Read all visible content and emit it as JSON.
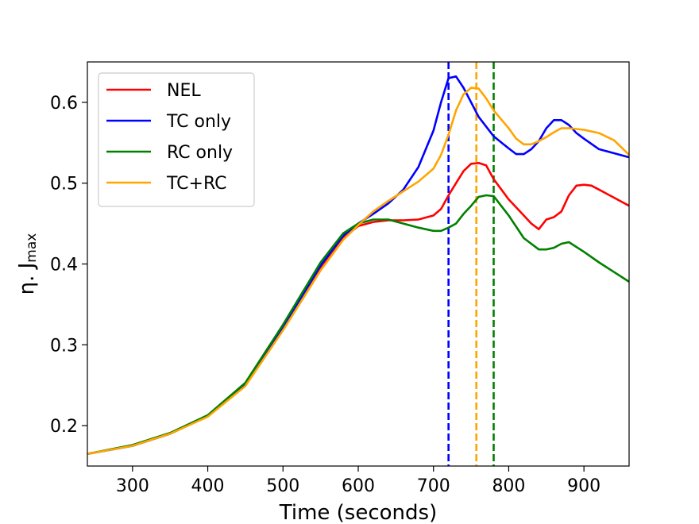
{
  "chart_data": {
    "type": "line",
    "title": "",
    "xlabel": "Time (seconds)",
    "ylabel_main": "η. J",
    "ylabel_sub": "max",
    "xlim": [
      240,
      960
    ],
    "ylim": [
      0.15,
      0.65
    ],
    "xticks": [
      300,
      400,
      500,
      600,
      700,
      800,
      900
    ],
    "yticks": [
      0.2,
      0.3,
      0.4,
      0.5,
      0.6
    ],
    "legend_position": "top-left",
    "series": [
      {
        "name": "NEL",
        "color": "#ff0000",
        "points": [
          [
            240,
            0.165
          ],
          [
            300,
            0.175
          ],
          [
            350,
            0.19
          ],
          [
            400,
            0.212
          ],
          [
            450,
            0.25
          ],
          [
            500,
            0.32
          ],
          [
            550,
            0.395
          ],
          [
            580,
            0.432
          ],
          [
            600,
            0.447
          ],
          [
            620,
            0.452
          ],
          [
            640,
            0.454
          ],
          [
            660,
            0.454
          ],
          [
            680,
            0.455
          ],
          [
            700,
            0.46
          ],
          [
            710,
            0.468
          ],
          [
            720,
            0.485
          ],
          [
            730,
            0.5
          ],
          [
            740,
            0.515
          ],
          [
            750,
            0.524
          ],
          [
            760,
            0.525
          ],
          [
            770,
            0.522
          ],
          [
            780,
            0.505
          ],
          [
            800,
            0.48
          ],
          [
            820,
            0.46
          ],
          [
            830,
            0.45
          ],
          [
            840,
            0.443
          ],
          [
            850,
            0.455
          ],
          [
            860,
            0.458
          ],
          [
            870,
            0.465
          ],
          [
            880,
            0.485
          ],
          [
            890,
            0.497
          ],
          [
            900,
            0.498
          ],
          [
            910,
            0.497
          ],
          [
            920,
            0.492
          ],
          [
            940,
            0.482
          ],
          [
            960,
            0.472
          ]
        ]
      },
      {
        "name": "TC only",
        "color": "#0000ff",
        "points": [
          [
            240,
            0.165
          ],
          [
            300,
            0.175
          ],
          [
            350,
            0.19
          ],
          [
            400,
            0.212
          ],
          [
            450,
            0.251
          ],
          [
            500,
            0.322
          ],
          [
            550,
            0.398
          ],
          [
            580,
            0.435
          ],
          [
            600,
            0.45
          ],
          [
            620,
            0.462
          ],
          [
            640,
            0.475
          ],
          [
            660,
            0.492
          ],
          [
            680,
            0.52
          ],
          [
            700,
            0.565
          ],
          [
            710,
            0.6
          ],
          [
            720,
            0.63
          ],
          [
            730,
            0.632
          ],
          [
            740,
            0.618
          ],
          [
            760,
            0.582
          ],
          [
            780,
            0.558
          ],
          [
            800,
            0.543
          ],
          [
            810,
            0.536
          ],
          [
            820,
            0.536
          ],
          [
            830,
            0.542
          ],
          [
            840,
            0.552
          ],
          [
            850,
            0.568
          ],
          [
            860,
            0.578
          ],
          [
            870,
            0.578
          ],
          [
            880,
            0.572
          ],
          [
            890,
            0.562
          ],
          [
            900,
            0.555
          ],
          [
            920,
            0.542
          ],
          [
            940,
            0.537
          ],
          [
            960,
            0.532
          ]
        ]
      },
      {
        "name": "RC only",
        "color": "#008000",
        "points": [
          [
            240,
            0.165
          ],
          [
            300,
            0.176
          ],
          [
            350,
            0.191
          ],
          [
            400,
            0.213
          ],
          [
            450,
            0.253
          ],
          [
            500,
            0.325
          ],
          [
            550,
            0.402
          ],
          [
            580,
            0.438
          ],
          [
            600,
            0.45
          ],
          [
            620,
            0.455
          ],
          [
            640,
            0.455
          ],
          [
            660,
            0.45
          ],
          [
            680,
            0.445
          ],
          [
            700,
            0.441
          ],
          [
            710,
            0.441
          ],
          [
            720,
            0.445
          ],
          [
            730,
            0.45
          ],
          [
            740,
            0.462
          ],
          [
            750,
            0.472
          ],
          [
            760,
            0.483
          ],
          [
            770,
            0.485
          ],
          [
            780,
            0.484
          ],
          [
            800,
            0.46
          ],
          [
            820,
            0.432
          ],
          [
            840,
            0.418
          ],
          [
            850,
            0.418
          ],
          [
            860,
            0.42
          ],
          [
            870,
            0.425
          ],
          [
            880,
            0.427
          ],
          [
            900,
            0.415
          ],
          [
            920,
            0.402
          ],
          [
            940,
            0.39
          ],
          [
            960,
            0.378
          ]
        ]
      },
      {
        "name": "TC+RC",
        "color": "#ffa500",
        "points": [
          [
            240,
            0.165
          ],
          [
            300,
            0.175
          ],
          [
            350,
            0.19
          ],
          [
            400,
            0.211
          ],
          [
            450,
            0.249
          ],
          [
            500,
            0.318
          ],
          [
            550,
            0.392
          ],
          [
            580,
            0.43
          ],
          [
            600,
            0.448
          ],
          [
            620,
            0.465
          ],
          [
            640,
            0.478
          ],
          [
            660,
            0.49
          ],
          [
            680,
            0.502
          ],
          [
            700,
            0.518
          ],
          [
            710,
            0.535
          ],
          [
            720,
            0.56
          ],
          [
            730,
            0.59
          ],
          [
            740,
            0.61
          ],
          [
            750,
            0.618
          ],
          [
            760,
            0.617
          ],
          [
            770,
            0.605
          ],
          [
            780,
            0.59
          ],
          [
            800,
            0.568
          ],
          [
            810,
            0.555
          ],
          [
            820,
            0.548
          ],
          [
            830,
            0.548
          ],
          [
            840,
            0.552
          ],
          [
            850,
            0.557
          ],
          [
            860,
            0.563
          ],
          [
            870,
            0.568
          ],
          [
            880,
            0.568
          ],
          [
            890,
            0.567
          ],
          [
            900,
            0.566
          ],
          [
            920,
            0.562
          ],
          [
            940,
            0.553
          ],
          [
            960,
            0.535
          ]
        ]
      }
    ],
    "vlines": [
      {
        "x": 720,
        "color": "#0000ff",
        "style": "dashed"
      },
      {
        "x": 757,
        "color": "#ffa500",
        "style": "dashed"
      },
      {
        "x": 780,
        "color": "#008000",
        "style": "dashed"
      }
    ]
  }
}
